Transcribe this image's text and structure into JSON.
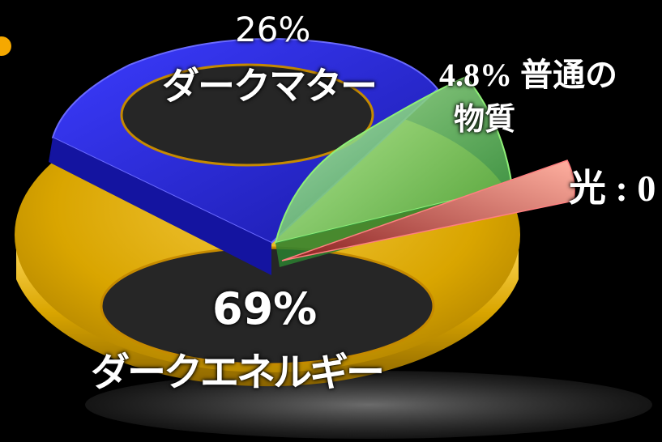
{
  "chart_data": {
    "type": "pie",
    "title": "",
    "slices": [
      {
        "name": "ダークエネルギー",
        "label_pct": "69%",
        "value": 69,
        "color": "#d9a500"
      },
      {
        "name": "ダークマター",
        "label_pct": "26%",
        "value": 26,
        "color": "#2a2ad8"
      },
      {
        "name_lines": [
          "普通の",
          "物質"
        ],
        "label_pct": "4.8%",
        "value": 4.8,
        "color": "#7ed86a"
      },
      {
        "name": "光 : 0",
        "value": 0.5,
        "color": "#e06060"
      }
    ]
  },
  "labels": {
    "dark_matter_pct": "26%",
    "dark_matter_name": "ダークマター",
    "dark_energy_pct": "69%",
    "dark_energy_name": "ダークエネルギー",
    "ordinary_pct_line": "4.8% 普通の",
    "ordinary_name_line": "物質",
    "light_label": "光 : 0"
  },
  "colors": {
    "background": "#000000",
    "bullet": "#f5a800"
  }
}
